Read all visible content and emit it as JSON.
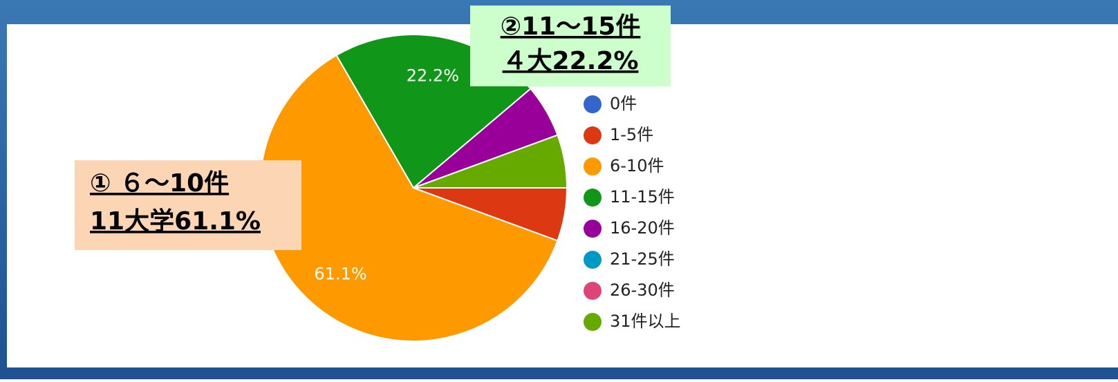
{
  "chart_data": {
    "type": "pie",
    "categories": [
      "0件",
      "1-5件",
      "6-10件",
      "11-15件",
      "16-20件",
      "21-25件",
      "26-30件",
      "31件以上"
    ],
    "values": [
      0,
      5.6,
      61.1,
      22.2,
      5.6,
      0,
      0,
      5.6
    ],
    "value_labels": [
      null,
      null,
      "61.1%",
      "22.2%",
      null,
      null,
      null,
      null
    ],
    "colors": [
      "#3366cc",
      "#dc3912",
      "#ff9900",
      "#109618",
      "#990099",
      "#0099c6",
      "#dd4477",
      "#66aa00"
    ],
    "start_angle": 90,
    "legend": "right",
    "annotations": [
      {
        "lines": [
          "① ６～10件",
          "11大学61.1%"
        ]
      },
      {
        "lines": [
          "②11～15件",
          "４大22.2%"
        ]
      }
    ]
  }
}
